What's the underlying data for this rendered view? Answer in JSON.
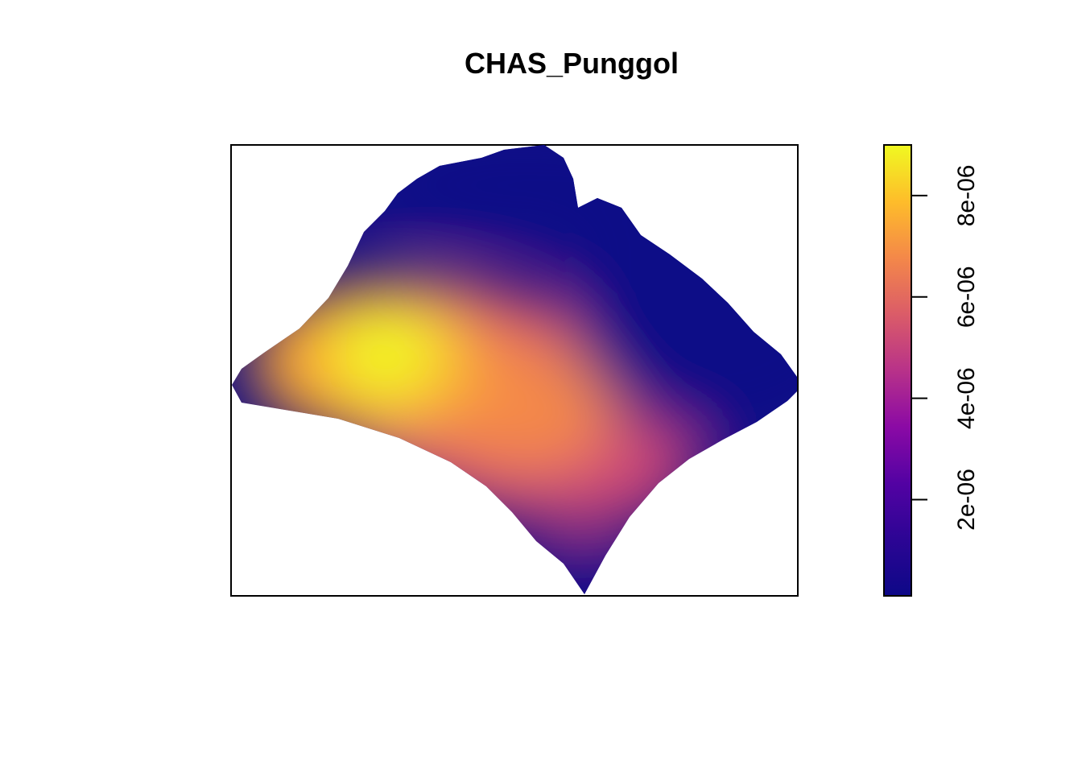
{
  "chart_data": {
    "type": "heatmap",
    "title": "CHAS_Punggol",
    "xlabel": "",
    "ylabel": "",
    "grid": false,
    "colorbar": {
      "placement": "right",
      "orientation": "vertical",
      "range": [
        1e-07,
        9e-06
      ],
      "ticks": [
        2e-06,
        4e-06,
        6e-06,
        8e-06
      ],
      "tick_labels": [
        "2e-06",
        "4e-06",
        "6e-06",
        "8e-06"
      ],
      "palette": "plasma",
      "colors": [
        "#0d0887",
        "#2c0594",
        "#5302a3",
        "#8b0aa5",
        "#b83289",
        "#db5c68",
        "#f48849",
        "#febd2a",
        "#f0f921"
      ]
    },
    "hotspots": [
      {
        "location": "west-central",
        "value": 9e-06
      },
      {
        "location": "south-central",
        "value": 6.5e-06
      }
    ],
    "low_region": "north-east",
    "low_value": 1e-07
  }
}
